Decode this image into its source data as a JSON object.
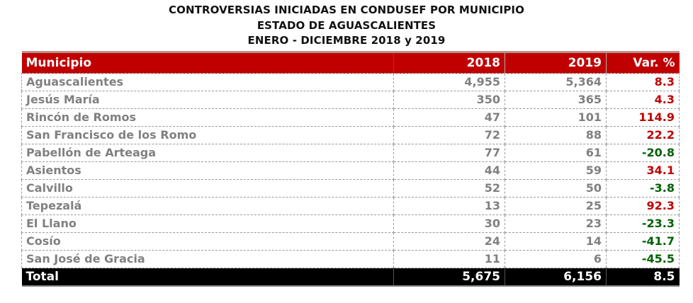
{
  "titles": {
    "line1": "CONTROVERSIAS INICIADAS EN CONDUSEF POR MUNICIPIO",
    "line2": "ESTADO DE AGUASCALIENTES",
    "line3": "ENERO - DICIEMBRE 2018 y 2019"
  },
  "colors": {
    "header_bg": "#c00000",
    "positive_var": "#c00000",
    "negative_var": "#006100",
    "total_bg": "#000000",
    "body_text": "#808080"
  },
  "table": {
    "headers": [
      "Municipio",
      "2018",
      "2019",
      "Var. %"
    ],
    "rows": [
      {
        "municipio": "Aguascalientes",
        "y2018": "4,955",
        "y2019": "5,364",
        "var": "8.3",
        "sign": "pos"
      },
      {
        "municipio": "Jesús María",
        "y2018": "350",
        "y2019": "365",
        "var": "4.3",
        "sign": "pos"
      },
      {
        "municipio": "Rincón de Romos",
        "y2018": "47",
        "y2019": "101",
        "var": "114.9",
        "sign": "pos"
      },
      {
        "municipio": "San Francisco de los Romo",
        "y2018": "72",
        "y2019": "88",
        "var": "22.2",
        "sign": "pos"
      },
      {
        "municipio": "Pabellón de Arteaga",
        "y2018": "77",
        "y2019": "61",
        "var": "-20.8",
        "sign": "neg"
      },
      {
        "municipio": "Asientos",
        "y2018": "44",
        "y2019": "59",
        "var": "34.1",
        "sign": "pos"
      },
      {
        "municipio": "Calvillo",
        "y2018": "52",
        "y2019": "50",
        "var": "-3.8",
        "sign": "neg"
      },
      {
        "municipio": "Tepezalá",
        "y2018": "13",
        "y2019": "25",
        "var": "92.3",
        "sign": "pos"
      },
      {
        "municipio": "El Llano",
        "y2018": "30",
        "y2019": "23",
        "var": "-23.3",
        "sign": "neg"
      },
      {
        "municipio": "Cosío",
        "y2018": "24",
        "y2019": "14",
        "var": "-41.7",
        "sign": "neg"
      },
      {
        "municipio": "San José de Gracia",
        "y2018": "11",
        "y2019": "6",
        "var": "-45.5",
        "sign": "neg"
      }
    ],
    "total": {
      "label": "Total",
      "y2018": "5,675",
      "y2019": "6,156",
      "var": "8.5"
    }
  }
}
